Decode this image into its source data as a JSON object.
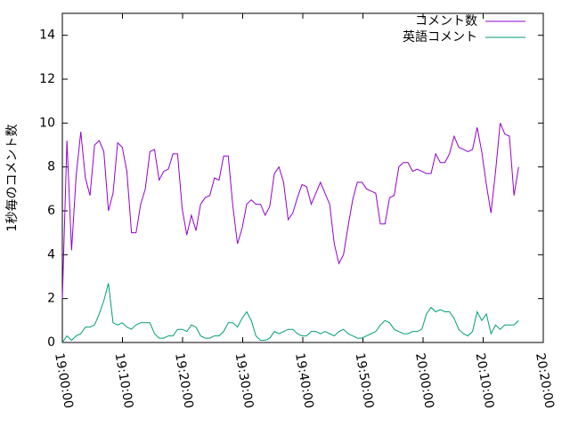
{
  "chart_data": {
    "type": "line",
    "ylabel": "1秒毎のコメント数",
    "x": [
      "19:00:00",
      "19:00:46",
      "19:01:32",
      "19:02:18",
      "19:03:04",
      "19:03:50",
      "19:04:36",
      "19:05:22",
      "19:06:08",
      "19:06:54",
      "19:07:40",
      "19:08:26",
      "19:09:12",
      "19:09:58",
      "19:10:44",
      "19:11:30",
      "19:12:16",
      "19:13:02",
      "19:13:48",
      "19:14:34",
      "19:15:20",
      "19:16:06",
      "19:16:52",
      "19:17:38",
      "19:18:24",
      "19:19:10",
      "19:19:56",
      "19:20:42",
      "19:21:28",
      "19:22:14",
      "19:23:00",
      "19:23:46",
      "19:24:32",
      "19:25:18",
      "19:26:04",
      "19:26:50",
      "19:27:36",
      "19:28:22",
      "19:29:08",
      "19:29:54",
      "19:30:40",
      "19:31:26",
      "19:32:12",
      "19:32:58",
      "19:33:44",
      "19:34:30",
      "19:35:16",
      "19:36:02",
      "19:36:48",
      "19:37:34",
      "19:38:20",
      "19:39:06",
      "19:39:52",
      "19:40:38",
      "19:41:24",
      "19:42:10",
      "19:42:56",
      "19:43:42",
      "19:44:28",
      "19:45:14",
      "19:46:00",
      "19:46:46",
      "19:47:32",
      "19:48:18",
      "19:49:04",
      "19:49:50",
      "19:50:36",
      "19:51:22",
      "19:52:08",
      "19:52:54",
      "19:53:40",
      "19:54:26",
      "19:55:12",
      "19:55:58",
      "19:56:44",
      "19:57:30",
      "19:58:16",
      "19:59:02",
      "19:59:48",
      "20:00:34",
      "20:01:20",
      "20:02:06",
      "20:02:52",
      "20:03:38",
      "20:04:24",
      "20:05:10",
      "20:05:56",
      "20:06:42",
      "20:07:28",
      "20:08:14",
      "20:09:00",
      "20:09:46",
      "20:10:32",
      "20:11:18",
      "20:12:04",
      "20:12:50",
      "20:13:36",
      "20:14:22",
      "20:15:08",
      "20:15:54"
    ],
    "series": [
      {
        "name": "コメント数",
        "color": "#9400d3",
        "values": [
          2.0,
          9.2,
          4.2,
          7.6,
          9.6,
          7.5,
          6.7,
          9.0,
          9.2,
          8.7,
          6.0,
          6.8,
          9.1,
          8.9,
          7.8,
          5.0,
          5.0,
          6.3,
          7.0,
          8.7,
          8.8,
          7.4,
          7.8,
          7.9,
          8.6,
          8.6,
          6.1,
          4.9,
          5.8,
          5.1,
          6.3,
          6.6,
          6.7,
          7.5,
          7.4,
          8.5,
          8.5,
          6.2,
          4.5,
          5.2,
          6.3,
          6.5,
          6.3,
          6.3,
          5.8,
          6.2,
          7.7,
          8.0,
          7.3,
          5.6,
          5.9,
          6.6,
          7.2,
          7.1,
          6.3,
          6.8,
          7.3,
          6.8,
          6.3,
          4.5,
          3.6,
          4.0,
          5.3,
          6.5,
          7.3,
          7.3,
          7.0,
          6.9,
          6.8,
          5.4,
          5.4,
          6.6,
          6.7,
          8.0,
          8.2,
          8.2,
          7.8,
          7.9,
          7.8,
          7.7,
          7.7,
          8.6,
          8.2,
          8.2,
          8.6,
          9.4,
          8.9,
          8.8,
          8.7,
          8.8,
          9.8,
          8.7,
          7.2,
          5.9,
          7.8,
          10.0,
          9.5,
          9.4,
          6.7,
          8.0
        ]
      },
      {
        "name": "英語コメント",
        "color": "#009e73",
        "values": [
          0.0,
          0.3,
          0.1,
          0.3,
          0.4,
          0.7,
          0.7,
          0.8,
          1.3,
          1.9,
          2.7,
          0.9,
          0.8,
          0.9,
          0.7,
          0.6,
          0.8,
          0.9,
          0.9,
          0.9,
          0.4,
          0.2,
          0.2,
          0.3,
          0.3,
          0.6,
          0.6,
          0.5,
          0.8,
          0.7,
          0.3,
          0.2,
          0.2,
          0.3,
          0.3,
          0.5,
          0.9,
          0.9,
          0.7,
          1.1,
          1.4,
          1.0,
          0.3,
          0.1,
          0.1,
          0.2,
          0.5,
          0.4,
          0.5,
          0.6,
          0.6,
          0.4,
          0.3,
          0.3,
          0.5,
          0.5,
          0.4,
          0.5,
          0.4,
          0.3,
          0.5,
          0.6,
          0.4,
          0.3,
          0.2,
          0.2,
          0.3,
          0.4,
          0.5,
          0.8,
          1.0,
          0.9,
          0.6,
          0.5,
          0.4,
          0.4,
          0.5,
          0.5,
          0.6,
          1.3,
          1.6,
          1.4,
          1.5,
          1.4,
          1.4,
          1.1,
          0.6,
          0.4,
          0.3,
          0.5,
          1.4,
          1.0,
          1.3,
          0.4,
          0.8,
          0.6,
          0.8,
          0.8,
          0.8,
          1.0
        ]
      }
    ],
    "xlim": [
      "19:00:00",
      "20:20:00"
    ],
    "xticks": [
      "19:00:00",
      "19:10:00",
      "19:20:00",
      "19:30:00",
      "19:40:00",
      "19:50:00",
      "20:00:00",
      "20:10:00",
      "20:20:00"
    ],
    "ylim": [
      0,
      15
    ],
    "yticks": [
      0,
      2,
      4,
      6,
      8,
      10,
      12,
      14
    ],
    "legend": "upper right"
  }
}
